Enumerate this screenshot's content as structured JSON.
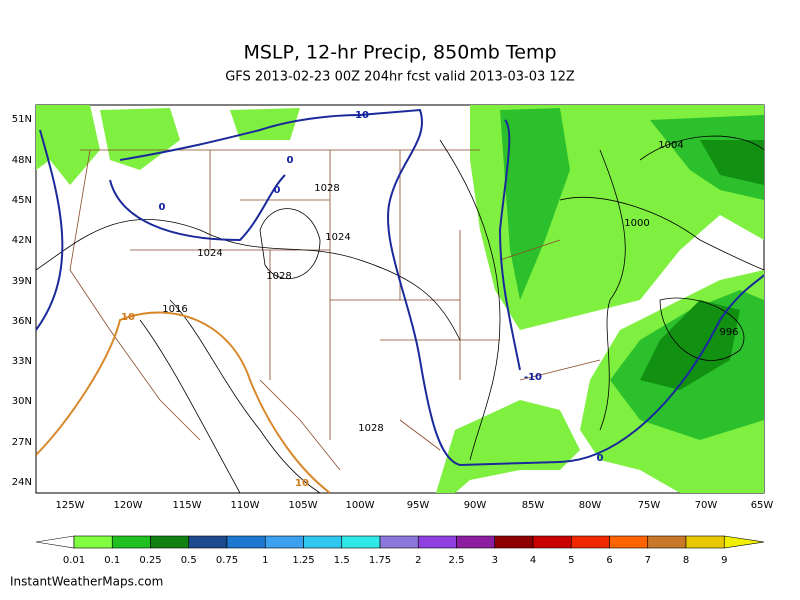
{
  "header": {
    "title": "MSLP, 12-hr Precip, 850mb Temp",
    "subtitle": "GFS 2013-02-23 00Z 204hr fcst valid 2013-03-03 12Z"
  },
  "map": {
    "lat_labels": [
      "51N",
      "48N",
      "45N",
      "42N",
      "39N",
      "36N",
      "33N",
      "30N",
      "27N",
      "24N"
    ],
    "lon_labels": [
      "125W",
      "120W",
      "115W",
      "110W",
      "105W",
      "100W",
      "95W",
      "90W",
      "85W",
      "80W",
      "75W",
      "70W",
      "65W"
    ],
    "contour_labels": [
      "-10",
      "0",
      "0",
      "0",
      "1028",
      "1024",
      "1024",
      "1028",
      "1016",
      "10",
      "-10",
      "1028",
      "10",
      "1004",
      "1000",
      "996",
      "0"
    ]
  },
  "legend": {
    "labels": [
      "0.01",
      "0.1",
      "0.25",
      "0.5",
      "0.75",
      "1",
      "1.25",
      "1.5",
      "1.75",
      "2",
      "2.5",
      "3",
      "4",
      "5",
      "6",
      "7",
      "8",
      "9"
    ],
    "colors": [
      "#ffffff",
      "#80ff40",
      "#20c020",
      "#108010",
      "#1c4a8c",
      "#1e78d0",
      "#3ca0f0",
      "#30c8f0",
      "#30e8e8",
      "#8c78dc",
      "#9040e0",
      "#8c1ca0",
      "#8c0000",
      "#c80000",
      "#f02800",
      "#ff6400",
      "#c87828",
      "#e8c800",
      "#f0f000"
    ]
  },
  "footer": "InstantWeatherMaps.com"
}
